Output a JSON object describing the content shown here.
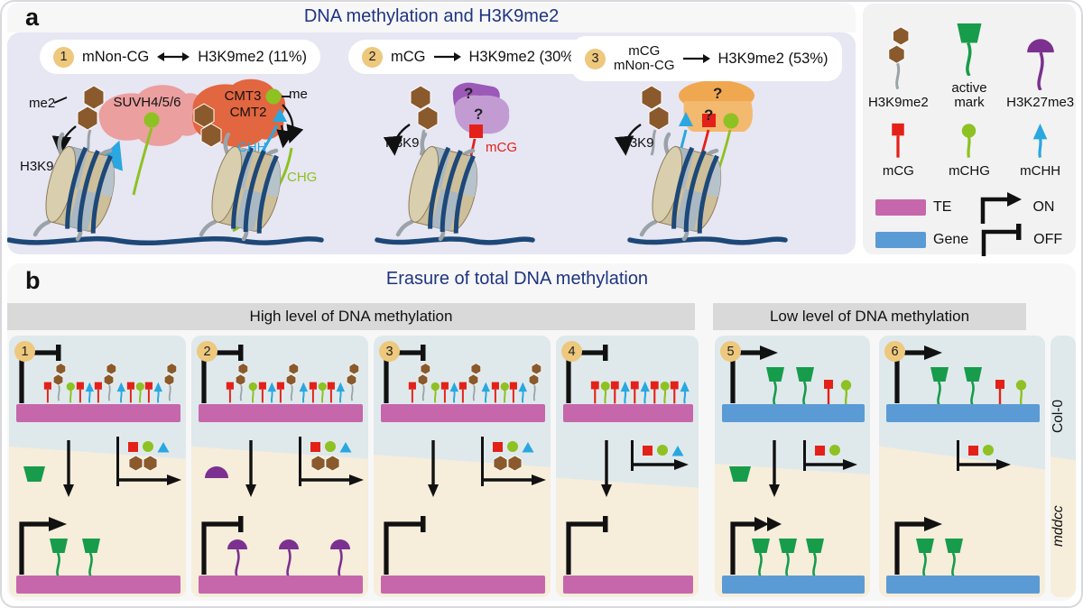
{
  "colors": {
    "mcg": "#e32119",
    "mchg": "#8ec122",
    "mchh": "#2aa7e0",
    "h3k9me2": "#8a5a2c",
    "active": "#179c4b",
    "h3k27me3": "#7c3190",
    "te": "#c667ac",
    "gene": "#5b9bd5",
    "dna": "#1d4878",
    "title": "#1e3580"
  },
  "panel_a": {
    "label": "a",
    "title": "DNA methylation and H3K9me2",
    "scenarios": [
      {
        "num": "1",
        "left": "mNon-CG",
        "right": "H3K9me2 (11%)"
      },
      {
        "num": "2",
        "left": "mCG",
        "right": "H3K9me2 (30%)"
      },
      {
        "num": "3",
        "left_line1": "mCG",
        "left_line2": "mNon-CG",
        "right": "H3K9me2 (53%)"
      }
    ],
    "annotations": {
      "me2": "me2",
      "h3k9_a": "H3K9",
      "suvh": "SUVH4/5/6",
      "cmt3": "CMT3",
      "cmt2": "CMT2",
      "me": "me",
      "chh": "CHH",
      "chg": "CHG",
      "h3k9_b": "H3K9",
      "mcg": "mCG",
      "h3k9_c": "H3K9",
      "q": "?"
    }
  },
  "legend": {
    "row1": [
      {
        "icon": "h3k9me2",
        "label": "H3K9me2"
      },
      {
        "icon": "active",
        "label": "active mark"
      },
      {
        "icon": "h3k27me3",
        "label": "H3K27me3"
      }
    ],
    "row2": [
      {
        "icon": "mCG",
        "label": "mCG"
      },
      {
        "icon": "mCHG",
        "label": "mCHG"
      },
      {
        "icon": "mCHH",
        "label": "mCHH"
      }
    ],
    "te_label": "TE",
    "gene_label": "Gene",
    "on_label": "ON",
    "off_label": "OFF"
  },
  "panel_b": {
    "label": "b",
    "title": "Erasure of total DNA methylation",
    "group_high": "High level of DNA methylation",
    "group_low": "Low level of DNA methylation",
    "row_top": "Col-0",
    "row_bottom": "mddcc",
    "columns": [
      {
        "num": "1",
        "element": "TE",
        "top": {
          "promoter": "off",
          "marks": [
            "mCG",
            "h3k9me2",
            "mCHG",
            "mCG",
            "mCHH",
            "mCG",
            "h3k9me2",
            "mCHH",
            "mCG",
            "mCHG",
            "mCG",
            "mCHH",
            "h3k9me2"
          ]
        },
        "transition": {
          "left_icons": [
            "active"
          ],
          "down_arrow": true,
          "erased_row1": [
            "mCG",
            "mCHG",
            "mCHH"
          ],
          "erased_row2": [
            "h3k9me2_pair"
          ]
        },
        "bottom": {
          "promoter": "on",
          "marks": [
            "active",
            "active"
          ]
        }
      },
      {
        "num": "2",
        "element": "TE",
        "top": {
          "promoter": "off",
          "marks": [
            "mCG",
            "h3k9me2",
            "mCHG",
            "mCG",
            "mCHH",
            "mCG",
            "h3k9me2",
            "mCHH",
            "mCG",
            "mCHG",
            "mCG",
            "mCHH",
            "h3k9me2"
          ]
        },
        "transition": {
          "left_icons": [
            "h3k27me3"
          ],
          "down_arrow": true,
          "erased_row1": [
            "mCG",
            "mCHG",
            "mCHH"
          ],
          "erased_row2": [
            "h3k9me2_pair"
          ]
        },
        "bottom": {
          "promoter": "off",
          "marks": [
            "h3k27me3",
            "h3k27me3",
            "h3k27me3"
          ]
        }
      },
      {
        "num": "3",
        "element": "TE",
        "top": {
          "promoter": "off",
          "marks": [
            "mCG",
            "h3k9me2",
            "mCHG",
            "mCG",
            "mCHH",
            "mCG",
            "h3k9me2",
            "mCHH",
            "mCG",
            "mCHG",
            "mCG",
            "mCHH",
            "h3k9me2"
          ]
        },
        "transition": {
          "left_icons": [],
          "down_arrow": true,
          "erased_row1": [
            "mCG",
            "mCHG",
            "mCHH"
          ],
          "erased_row2": [
            "h3k9me2_pair"
          ]
        },
        "bottom": {
          "promoter": "off",
          "marks": []
        }
      },
      {
        "num": "4",
        "element": "TE",
        "top": {
          "promoter": "off",
          "marks": [
            "mCG",
            "mCHG",
            "mCG",
            "mCHH",
            "mCG",
            "mCHH",
            "mCG",
            "mCHG",
            "mCG",
            "mCHH"
          ]
        },
        "transition": {
          "left_icons": [],
          "down_arrow": true,
          "erased_row1": [
            "mCG",
            "mCHG",
            "mCHH"
          ],
          "erased_row2": []
        },
        "bottom": {
          "promoter": "off",
          "marks": []
        }
      },
      {
        "num": "5",
        "element": "Gene",
        "top": {
          "promoter": "on",
          "marks": [
            "active",
            "active",
            "mCG",
            "mCHG"
          ]
        },
        "transition": {
          "left_icons": [
            "active"
          ],
          "down_arrow": true,
          "erased_row1": [
            "mCG",
            "mCHG"
          ],
          "erased_row2": []
        },
        "bottom": {
          "promoter": "on2",
          "marks": [
            "active",
            "active",
            "active"
          ]
        }
      },
      {
        "num": "6",
        "element": "Gene",
        "top": {
          "promoter": "on",
          "marks": [
            "active",
            "active",
            "mCG",
            "mCHG"
          ]
        },
        "transition": {
          "left_icons": [],
          "down_arrow": false,
          "erased_row1": [
            "mCG",
            "mCHG"
          ],
          "erased_row2": []
        },
        "bottom": {
          "promoter": "on",
          "marks": [
            "active",
            "active"
          ]
        }
      }
    ]
  }
}
